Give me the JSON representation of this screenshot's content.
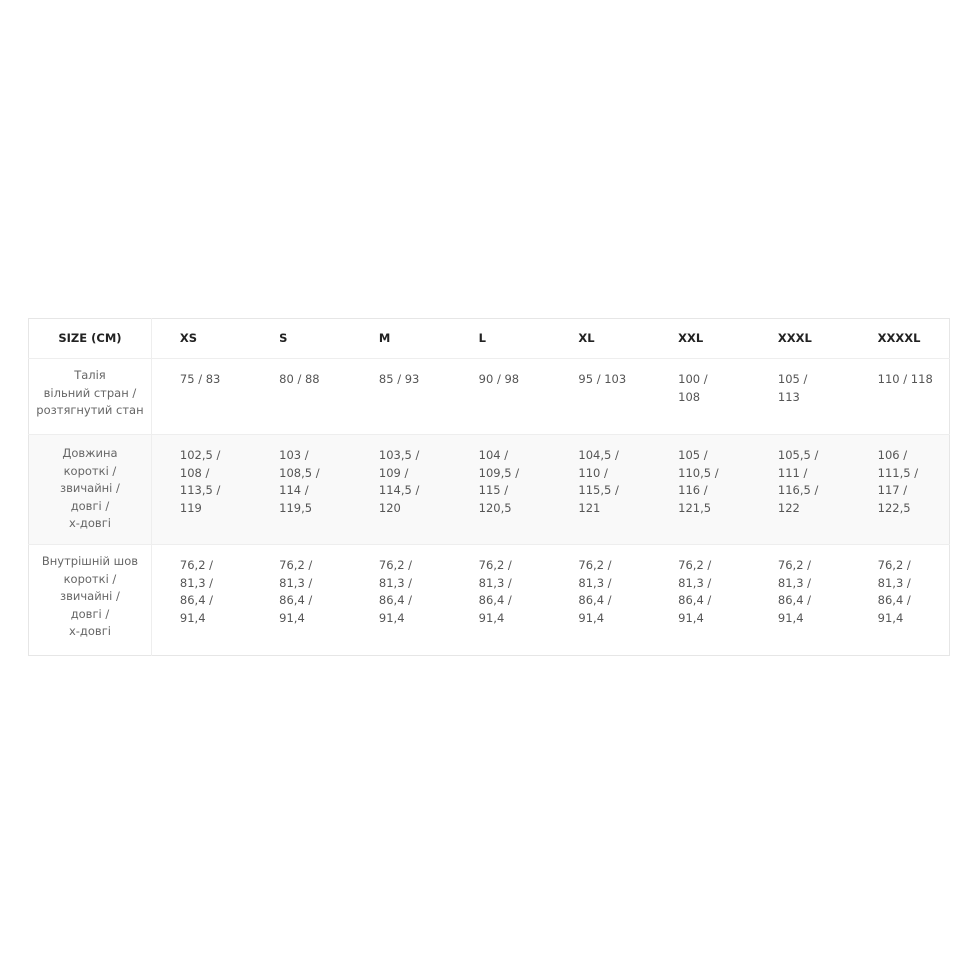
{
  "table": {
    "header": [
      "SIZE (CM)",
      "XS",
      "S",
      "M",
      "L",
      "XL",
      "XXL",
      "XXXL",
      "XXXXL"
    ],
    "rows": [
      {
        "label": "Талія\nвільний стран /\nрозтягнутий стан",
        "cells": [
          "75 / 83",
          "80 / 88",
          "85 / 93",
          "90 / 98",
          "95 / 103",
          "100 /\n108",
          "105 /\n113",
          "110 / 118"
        ]
      },
      {
        "label": "Довжина\nкороткі /\nзвичайні /\nдовгі /\nх-довгі",
        "cells": [
          "102,5 /\n108 /\n113,5 /\n119",
          "103 /\n108,5 /\n114 /\n119,5",
          "103,5 /\n109 /\n114,5 /\n120",
          "104 /\n109,5 /\n115 /\n120,5",
          "104,5 /\n110 /\n115,5 /\n121",
          "105 /\n110,5 /\n116 /\n121,5",
          "105,5 /\n111 /\n116,5 /\n122",
          "106 /\n111,5 /\n117 /\n122,5"
        ]
      },
      {
        "label": "Внутрішній шов\nкороткі /\nзвичайні /\nдовгі /\nх-довгі",
        "cells": [
          "76,2 /\n81,3 /\n86,4 /\n91,4",
          "76,2 /\n81,3 /\n86,4 /\n91,4",
          "76,2 /\n81,3 /\n86,4 /\n91,4",
          "76,2 /\n81,3 /\n86,4 /\n91,4",
          "76,2 /\n81,3 /\n86,4 /\n91,4",
          "76,2 /\n81,3 /\n86,4 /\n91,4",
          "76,2 /\n81,3 /\n86,4 /\n91,4",
          "76,2 /\n81,3 /\n86,4 /\n91,4"
        ]
      }
    ]
  }
}
